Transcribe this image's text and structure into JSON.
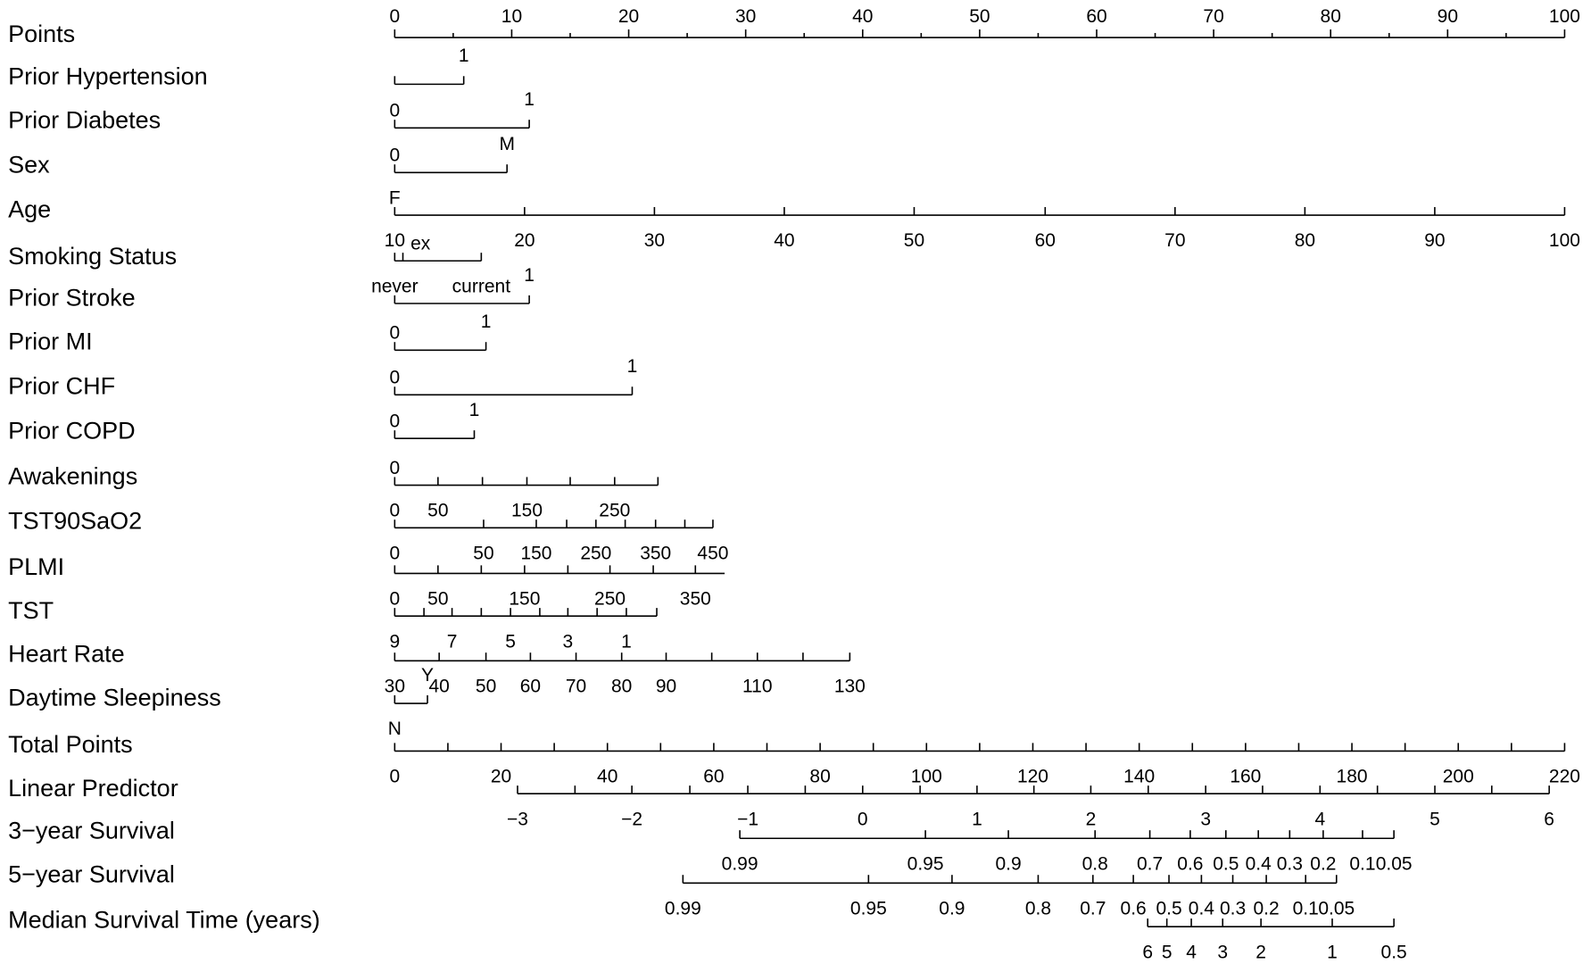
{
  "chart_data": {
    "type": "nomogram",
    "xlim": [
      0,
      100
    ],
    "total_xlim": [
      0,
      220
    ],
    "rows": [
      {
        "name": "Points",
        "range": [
          0,
          100
        ],
        "ticks": [
          0,
          10,
          20,
          30,
          40,
          50,
          60,
          70,
          80,
          90,
          100
        ],
        "minor_ticks": [
          5,
          15,
          25,
          35,
          45,
          55,
          65,
          75,
          85,
          95
        ],
        "labels": [
          0,
          10,
          20,
          30,
          40,
          50,
          60,
          70,
          80,
          90,
          100
        ]
      },
      {
        "name": "Prior Hypertension",
        "range": [
          0,
          5.9
        ],
        "ticks": [
          0,
          5.9
        ],
        "labels": [
          {
            "value": 5.9,
            "label": "1"
          }
        ]
      },
      {
        "name": "Prior Diabetes",
        "range": [
          0,
          11.5
        ],
        "ticks": [
          0,
          11.5
        ],
        "labels": [
          {
            "value": 0,
            "label": "0"
          },
          {
            "value": 11.5,
            "label": "1"
          }
        ]
      },
      {
        "name": "Sex",
        "range": [
          0,
          9.6
        ],
        "ticks": [
          0,
          9.6
        ],
        "labels": [
          {
            "value": 0,
            "label": "0"
          },
          {
            "value": 9.6,
            "label": "M"
          }
        ]
      },
      {
        "name": "Age",
        "range": [
          0,
          100
        ],
        "ticks": [
          0,
          11.1,
          22.2,
          33.3,
          44.4,
          55.6,
          66.7,
          77.8,
          88.9,
          100
        ],
        "labels": [
          {
            "value": 0,
            "label": "F"
          }
        ],
        "labels_below": [
          {
            "value": 0,
            "label": "10"
          },
          {
            "value": 11.1,
            "label": "20"
          },
          {
            "value": 22.2,
            "label": "30"
          },
          {
            "value": 33.3,
            "label": "40"
          },
          {
            "value": 44.4,
            "label": "50"
          },
          {
            "value": 55.6,
            "label": "60"
          },
          {
            "value": 66.7,
            "label": "70"
          },
          {
            "value": 77.8,
            "label": "80"
          },
          {
            "value": 88.9,
            "label": "90"
          },
          {
            "value": 100,
            "label": "100"
          }
        ]
      },
      {
        "name": "Smoking Status",
        "range": [
          0,
          7.4
        ],
        "ticks": [
          0,
          0.7,
          7.4
        ],
        "labels": [
          {
            "value": 2.2,
            "label": "ex"
          }
        ],
        "labels_below": [
          {
            "value": 0,
            "label": "never"
          },
          {
            "value": 7.4,
            "label": "current"
          }
        ]
      },
      {
        "name": "Prior Stroke",
        "range": [
          0,
          11.5
        ],
        "ticks": [
          0,
          11.5
        ],
        "labels": [
          {
            "value": 11.5,
            "label": "1"
          }
        ]
      },
      {
        "name": "Prior MI",
        "range": [
          0,
          7.8
        ],
        "ticks": [
          0,
          7.8
        ],
        "labels": [
          {
            "value": 0,
            "label": "0"
          },
          {
            "value": 7.8,
            "label": "1"
          }
        ]
      },
      {
        "name": "Prior CHF",
        "range": [
          0,
          20.3
        ],
        "ticks": [
          0,
          20.3
        ],
        "labels": [
          {
            "value": 0,
            "label": "0"
          },
          {
            "value": 20.3,
            "label": "1"
          }
        ]
      },
      {
        "name": "Prior COPD",
        "range": [
          0,
          6.8
        ],
        "ticks": [
          0,
          6.8
        ],
        "labels": [
          {
            "value": 0,
            "label": "0"
          },
          {
            "value": 6.8,
            "label": "1"
          }
        ]
      },
      {
        "name": "Awakenings",
        "range": [
          0,
          22.5
        ],
        "ticks": [
          0,
          3.7,
          7.5,
          11.3,
          15,
          18.8,
          22.5
        ],
        "labels": [
          {
            "value": 0,
            "label": "0"
          }
        ],
        "labels_below": [
          {
            "value": 0,
            "label": "0"
          },
          {
            "value": 3.7,
            "label": "50"
          },
          {
            "value": 11.3,
            "label": "150"
          },
          {
            "value": 18.8,
            "label": "250"
          }
        ]
      },
      {
        "name": "TST90SaO2",
        "range": [
          0,
          27.2
        ],
        "ticks": [
          0,
          7.6,
          12.1,
          14.7,
          17.2,
          19.7,
          22.3,
          24.8,
          27.2
        ],
        "labels_below": [
          {
            "value": 0,
            "label": "0"
          },
          {
            "value": 7.6,
            "label": "50"
          },
          {
            "value": 12.1,
            "label": "150"
          },
          {
            "value": 17.2,
            "label": "250"
          },
          {
            "value": 22.3,
            "label": "350"
          },
          {
            "value": 27.2,
            "label": "450"
          }
        ]
      },
      {
        "name": "PLMI",
        "range": [
          0,
          28.2
        ],
        "ticks": [
          0,
          3.7,
          7.4,
          11.1,
          14.8,
          18.4,
          22.1,
          25.7
        ],
        "labels_below": [
          {
            "value": 0,
            "label": "0"
          },
          {
            "value": 3.7,
            "label": "50"
          },
          {
            "value": 11.1,
            "label": "150"
          },
          {
            "value": 18.4,
            "label": "250"
          },
          {
            "value": 25.7,
            "label": "350"
          }
        ]
      },
      {
        "name": "TST",
        "range": [
          0,
          22.4
        ],
        "ticks": [
          0,
          2.5,
          4.9,
          7.4,
          9.9,
          12.4,
          14.8,
          17.3,
          19.8,
          22.4
        ],
        "labels_below": [
          {
            "value": 0,
            "label": "9"
          },
          {
            "value": 4.9,
            "label": "7"
          },
          {
            "value": 9.9,
            "label": "5"
          },
          {
            "value": 14.8,
            "label": "3"
          },
          {
            "value": 19.8,
            "label": "1"
          }
        ]
      },
      {
        "name": "Heart Rate",
        "range": [
          0,
          38.9
        ],
        "ticks": [
          0,
          3.8,
          7.8,
          11.6,
          15.5,
          19.4,
          23.2,
          27.1,
          31,
          34.9,
          38.9
        ],
        "labels_below": [
          {
            "value": 0,
            "label": "30"
          },
          {
            "value": 3.8,
            "label": "40"
          },
          {
            "value": 7.8,
            "label": "50"
          },
          {
            "value": 11.6,
            "label": "60"
          },
          {
            "value": 15.5,
            "label": "70"
          },
          {
            "value": 19.4,
            "label": "80"
          },
          {
            "value": 23.2,
            "label": "90"
          },
          {
            "value": 31,
            "label": "110"
          },
          {
            "value": 38.9,
            "label": "130"
          }
        ]
      },
      {
        "name": "Daytime Sleepiness",
        "range": [
          0,
          2.8
        ],
        "ticks": [
          0,
          2.8
        ],
        "labels": [
          {
            "value": 2.8,
            "label": "Y"
          }
        ],
        "labels_below": [
          {
            "value": 0,
            "label": "N"
          }
        ]
      },
      {
        "name": "Total Points",
        "scale": "total",
        "range": [
          0,
          220
        ],
        "ticks": [
          0,
          10,
          20,
          30,
          40,
          50,
          60,
          70,
          80,
          90,
          100,
          110,
          120,
          130,
          140,
          150,
          160,
          170,
          180,
          190,
          200,
          210,
          220
        ],
        "labels_below": [
          0,
          20,
          40,
          60,
          80,
          100,
          120,
          140,
          160,
          180,
          200,
          220
        ]
      },
      {
        "name": "Linear Predictor",
        "scale": "total",
        "range": [
          23.1,
          217.1
        ],
        "ticks": [
          23.1,
          33.9,
          44.6,
          55.5,
          66.4,
          77.2,
          88,
          98.8,
          109.5,
          120.2,
          130.9,
          141.7,
          152.5,
          163.2,
          174,
          184.8,
          195.6,
          206.3,
          217.1
        ],
        "labels_below": [
          {
            "value": 23.1,
            "label": "−3"
          },
          {
            "value": 44.6,
            "label": "−2"
          },
          {
            "value": 66.4,
            "label": "−1"
          },
          {
            "value": 88,
            "label": "0"
          },
          {
            "value": 109.5,
            "label": "1"
          },
          {
            "value": 130.9,
            "label": "2"
          },
          {
            "value": 152.5,
            "label": "3"
          },
          {
            "value": 174,
            "label": "4"
          },
          {
            "value": 195.6,
            "label": "5"
          },
          {
            "value": 217.1,
            "label": "6"
          }
        ]
      },
      {
        "name": "3−year Survival",
        "scale": "total",
        "range": [
          64.9,
          187.9
        ],
        "ticks": [
          64.9,
          99.8,
          115.4,
          131.7,
          142,
          149.6,
          156.3,
          162.4,
          168.3,
          174.6,
          182,
          187.9
        ],
        "labels_below": [
          {
            "value": 64.9,
            "label": "0.99"
          },
          {
            "value": 99.8,
            "label": "0.95"
          },
          {
            "value": 115.4,
            "label": "0.9"
          },
          {
            "value": 131.7,
            "label": "0.8"
          },
          {
            "value": 142,
            "label": "0.7"
          },
          {
            "value": 149.6,
            "label": "0.6"
          },
          {
            "value": 156.3,
            "label": "0.5"
          },
          {
            "value": 162.4,
            "label": "0.4"
          },
          {
            "value": 168.3,
            "label": "0.3"
          },
          {
            "value": 174.6,
            "label": "0.2"
          },
          {
            "value": 182,
            "label": "0.1"
          },
          {
            "value": 187.9,
            "label": "0.05"
          }
        ]
      },
      {
        "name": "5−year Survival",
        "scale": "total",
        "range": [
          54.2,
          177.1
        ],
        "ticks": [
          54.2,
          89.1,
          104.8,
          121,
          131.3,
          138.9,
          145.6,
          151.7,
          157.6,
          163.9,
          171.3,
          177.1
        ],
        "labels_below": [
          {
            "value": 54.2,
            "label": "0.99"
          },
          {
            "value": 89.1,
            "label": "0.95"
          },
          {
            "value": 104.8,
            "label": "0.9"
          },
          {
            "value": 121,
            "label": "0.8"
          },
          {
            "value": 131.3,
            "label": "0.7"
          },
          {
            "value": 138.9,
            "label": "0.6"
          },
          {
            "value": 145.6,
            "label": "0.5"
          },
          {
            "value": 151.7,
            "label": "0.4"
          },
          {
            "value": 157.6,
            "label": "0.3"
          },
          {
            "value": 163.9,
            "label": "0.2"
          },
          {
            "value": 171.3,
            "label": "0.1"
          },
          {
            "value": 177.1,
            "label": "0.05"
          }
        ]
      },
      {
        "name": "Median Survival Time (years)",
        "scale": "total",
        "range": [
          141.6,
          187.9
        ],
        "ticks": [
          141.6,
          145.2,
          149.8,
          155.7,
          162.9,
          176.3,
          187.9
        ],
        "labels_below": [
          {
            "value": 141.6,
            "label": "6"
          },
          {
            "value": 145.2,
            "label": "5"
          },
          {
            "value": 149.8,
            "label": "4"
          },
          {
            "value": 155.7,
            "label": "3"
          },
          {
            "value": 162.9,
            "label": "2"
          },
          {
            "value": 176.3,
            "label": "1"
          },
          {
            "value": 187.9,
            "label": "0.5"
          }
        ]
      }
    ]
  }
}
